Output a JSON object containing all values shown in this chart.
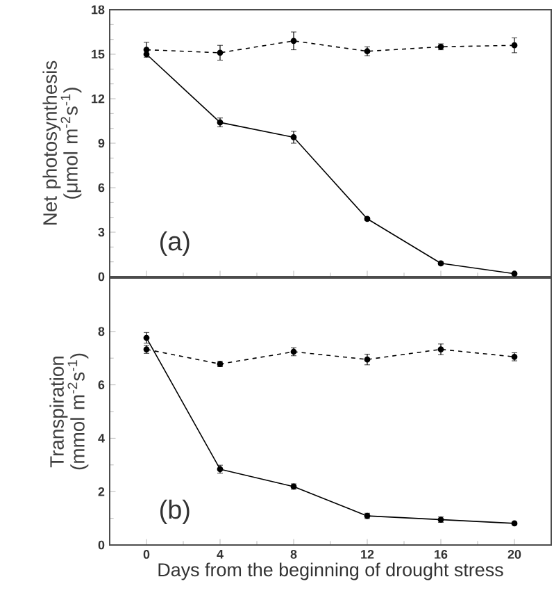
{
  "chart_data": [
    {
      "type": "line",
      "ylabel": "Net photosynthesis (μmol m$^{-2}$s$^{-1}$)",
      "x": [
        0,
        4,
        8,
        12,
        16,
        20
      ],
      "xlim": [
        -2,
        22
      ],
      "xticks": [
        0,
        4,
        8,
        12,
        16,
        20
      ],
      "ylim": [
        0,
        18
      ],
      "yticks": [
        0,
        3,
        6,
        9,
        12,
        15,
        18
      ],
      "tick_labels": "y",
      "marker": "circle",
      "annotations": [
        "(a)"
      ],
      "series": [
        {
          "color": "#000000",
          "line_style": "dashed",
          "values": [
            15.3,
            15.1,
            15.9,
            15.2,
            15.5,
            15.6
          ],
          "errors": [
            0.5,
            0.5,
            0.6,
            0.3,
            0.2,
            0.5
          ]
        },
        {
          "color": "#000000",
          "line_style": "solid",
          "values": [
            15.0,
            10.4,
            9.4,
            3.9,
            0.9,
            0.2
          ],
          "errors": [
            null,
            0.3,
            0.4,
            0.1,
            0.1,
            0.1
          ]
        }
      ]
    },
    {
      "type": "line",
      "ylabel": "Transpiration (mmol m$^{-2}$s$^{-1}$)",
      "xlabel": "Days from the beginning of drought stress",
      "x": [
        0,
        4,
        8,
        12,
        16,
        20
      ],
      "xlim": [
        -2,
        22
      ],
      "xticks": [
        0,
        4,
        8,
        12,
        16,
        20
      ],
      "ylim": [
        0,
        10
      ],
      "yticks": [
        0,
        2,
        4,
        6,
        8
      ],
      "marker": "circle",
      "annotations": [
        "(b)"
      ],
      "series": [
        {
          "color": "#000000",
          "line_style": "dashed",
          "values": [
            7.33,
            6.78,
            7.24,
            6.95,
            7.33,
            7.05
          ],
          "errors": [
            0.15,
            0.1,
            0.15,
            0.2,
            0.2,
            0.15
          ]
        },
        {
          "color": "#000000",
          "line_style": "solid",
          "values": [
            7.76,
            2.84,
            2.19,
            1.09,
            0.95,
            0.81
          ],
          "errors": [
            0.2,
            0.15,
            0.1,
            0.1,
            0.1,
            0.05
          ]
        }
      ]
    }
  ]
}
